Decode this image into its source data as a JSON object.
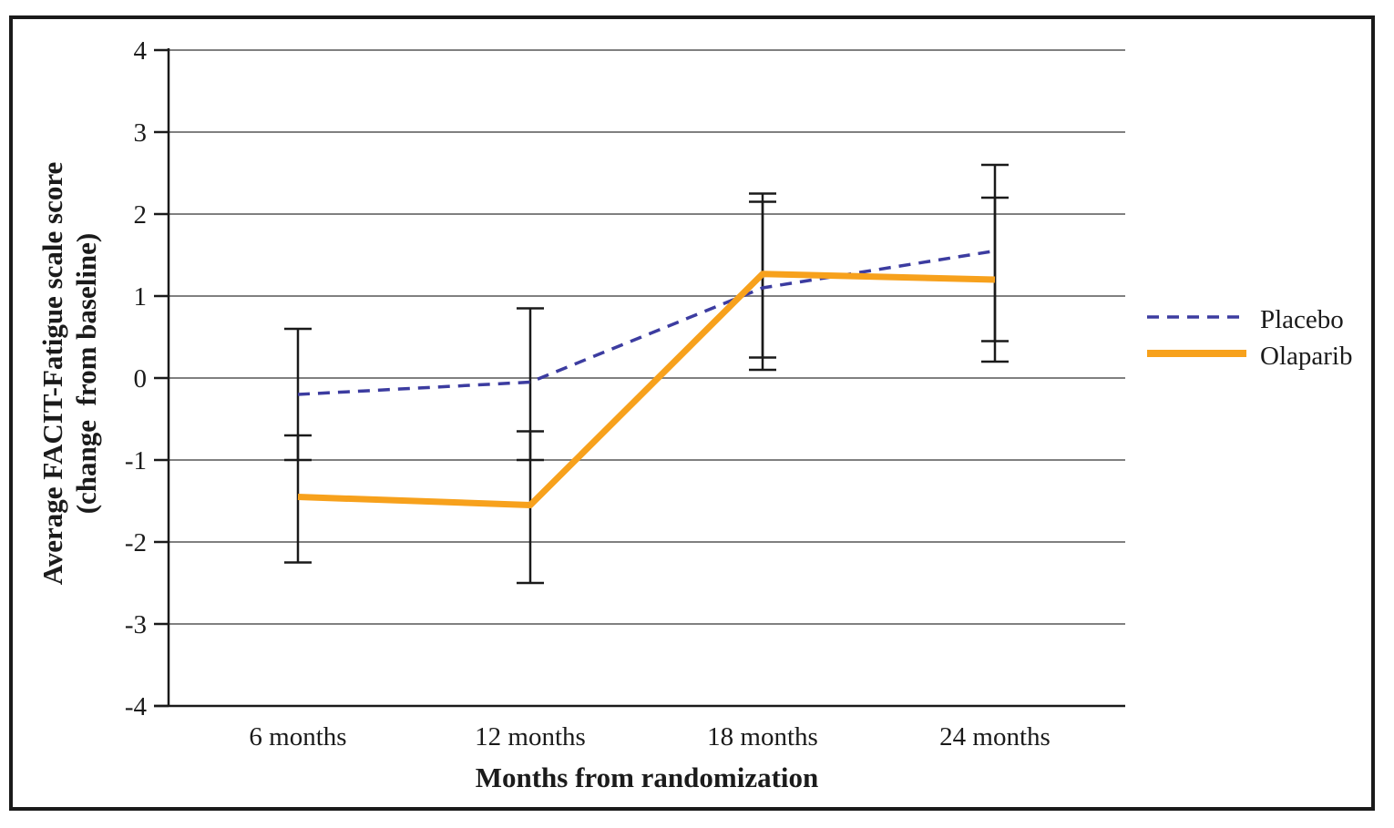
{
  "chart_data": {
    "type": "line",
    "title": "",
    "xlabel": "Months from randomization",
    "ylabel_line1": "Average FACIT-Fatigue scale score",
    "ylabel_line2": "(change  from baseline)",
    "categories": [
      "6 months",
      "12 months",
      "18 months",
      "24 months"
    ],
    "yticks": [
      "4",
      "3",
      "2",
      "1",
      "0",
      "-1",
      "-2",
      "-3",
      "-4"
    ],
    "ylim": [
      -4,
      4
    ],
    "grid": true,
    "error_bars": true,
    "legend_position": "right",
    "axis_color": "#1a1a1a",
    "gridline_color": "#808080",
    "series": [
      {
        "name": "Placebo",
        "line_style": "dashed",
        "color": "#3C3CA0",
        "values": [
          -0.2,
          -0.05,
          1.1,
          1.55
        ],
        "ci_low": [
          -1.0,
          -1.0,
          0.1,
          0.45
        ],
        "ci_high": [
          0.6,
          0.85,
          2.15,
          2.6
        ]
      },
      {
        "name": "Olaparib",
        "line_style": "solid",
        "color": "#F7A11C",
        "values": [
          -1.45,
          -1.55,
          1.27,
          1.2
        ],
        "ci_low": [
          -2.25,
          -2.5,
          0.25,
          0.2
        ],
        "ci_high": [
          -0.7,
          -0.65,
          2.25,
          2.2
        ]
      }
    ]
  }
}
